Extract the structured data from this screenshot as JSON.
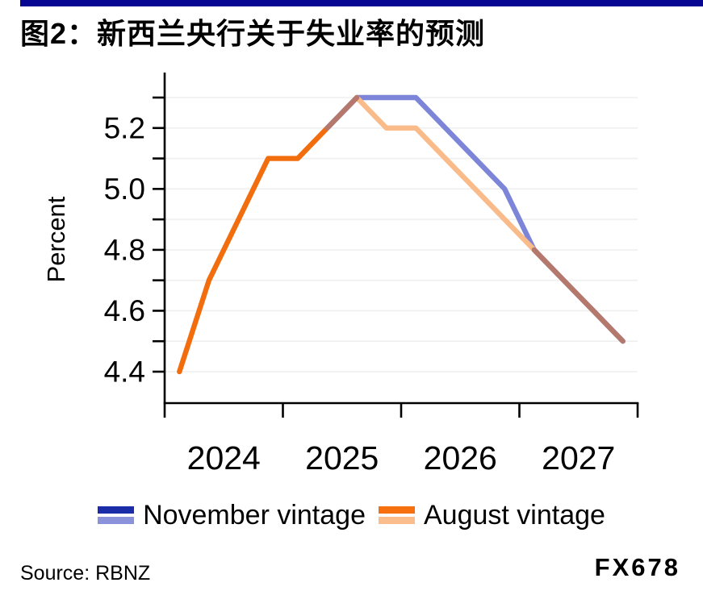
{
  "header": {
    "title": "图2：新西兰央行关于失业率的预测",
    "accent_bar_color": "#060692"
  },
  "chart_data": {
    "type": "line",
    "title": "图2：新西兰央行关于失业率的预测",
    "xlabel": "",
    "ylabel": "Percent",
    "ylim": [
      4.3,
      5.39
    ],
    "grid": "horizontal",
    "legend_position": "bottom",
    "categories": [
      "2024Q1",
      "2024Q2",
      "2024Q3",
      "2024Q4",
      "2025Q1",
      "2025Q2",
      "2025Q3",
      "2025Q4",
      "2026Q1",
      "2026Q2",
      "2026Q3",
      "2026Q4",
      "2027Q1",
      "2027Q2",
      "2027Q3",
      "2027Q4"
    ],
    "series": [
      {
        "name": "November vintage",
        "values": [
          null,
          null,
          null,
          null,
          null,
          5.2,
          5.3,
          5.3,
          5.3,
          5.2,
          5.1,
          5.0,
          4.8,
          4.7,
          4.6,
          4.5
        ]
      },
      {
        "name": "August vintage",
        "values": [
          4.4,
          4.7,
          4.9,
          5.1,
          5.1,
          5.2,
          5.3,
          5.2,
          5.2,
          5.1,
          5.0,
          4.9,
          4.8,
          4.7,
          4.6,
          4.5
        ]
      }
    ],
    "y_axis": {
      "label": "Percent",
      "ticks": [
        4.4,
        4.5,
        4.6,
        4.7,
        4.8,
        4.9,
        5.0,
        5.1,
        5.2,
        5.3
      ],
      "labeled_ticks": [
        "4.4",
        "4.6",
        "4.8",
        "5.0",
        "5.2"
      ]
    },
    "x_axis": {
      "year_labels": [
        "2024",
        "2025",
        "2026",
        "2027"
      ],
      "quarters_per_year": 4
    },
    "colors": {
      "november_line": "#7D85D8",
      "august_actual_line": "#F26D0E",
      "august_forecast_line": "#FABB8A",
      "overlap_line": "#B5786C",
      "gridline": "#EFEFEF",
      "axis": "#000000"
    },
    "render_segments": [
      {
        "name": "november-forecast",
        "color": "#7D85D8",
        "points": [
          [
            "2025Q2",
            5.2
          ],
          [
            "2025Q3",
            5.3
          ],
          [
            "2025Q4",
            5.3
          ],
          [
            "2026Q1",
            5.3
          ],
          [
            "2026Q2",
            5.2
          ],
          [
            "2026Q3",
            5.1
          ],
          [
            "2026Q4",
            5.0
          ],
          [
            "2027Q1",
            4.8
          ],
          [
            "2027Q2",
            4.7
          ],
          [
            "2027Q3",
            4.6
          ],
          [
            "2027Q4",
            4.5
          ]
        ]
      },
      {
        "name": "august-actual",
        "color": "#F26D0E",
        "points": [
          [
            "2024Q1",
            4.4
          ],
          [
            "2024Q2",
            4.7
          ],
          [
            "2024Q3",
            4.9
          ],
          [
            "2024Q4",
            5.1
          ],
          [
            "2025Q1",
            5.1
          ],
          [
            "2025Q2",
            5.2
          ]
        ]
      },
      {
        "name": "august-forecast",
        "color": "#FABB8A",
        "points": [
          [
            "2025Q3",
            5.3
          ],
          [
            "2025Q4",
            5.2
          ],
          [
            "2026Q1",
            5.2
          ],
          [
            "2026Q2",
            5.1
          ],
          [
            "2026Q3",
            5.0
          ],
          [
            "2026Q4",
            4.9
          ],
          [
            "2027Q1",
            4.8
          ]
        ]
      },
      {
        "name": "overlap-rise",
        "color": "#B5786C",
        "points": [
          [
            "2025Q2",
            5.2
          ],
          [
            "2025Q3",
            5.3
          ]
        ]
      },
      {
        "name": "overlap-tail",
        "color": "#B5786C",
        "points": [
          [
            "2027Q1",
            4.8
          ],
          [
            "2027Q2",
            4.7
          ],
          [
            "2027Q3",
            4.6
          ],
          [
            "2027Q4",
            4.5
          ]
        ]
      }
    ]
  },
  "legend": {
    "items": [
      {
        "label": "November vintage",
        "color_top": "#1A2CA8",
        "color_bottom": "#8A92DB"
      },
      {
        "label": "August vintage",
        "color_top": "#F7700F",
        "color_bottom": "#FBBD8C"
      }
    ]
  },
  "footer": {
    "source": "Source: RBNZ",
    "watermark": "FX678"
  }
}
